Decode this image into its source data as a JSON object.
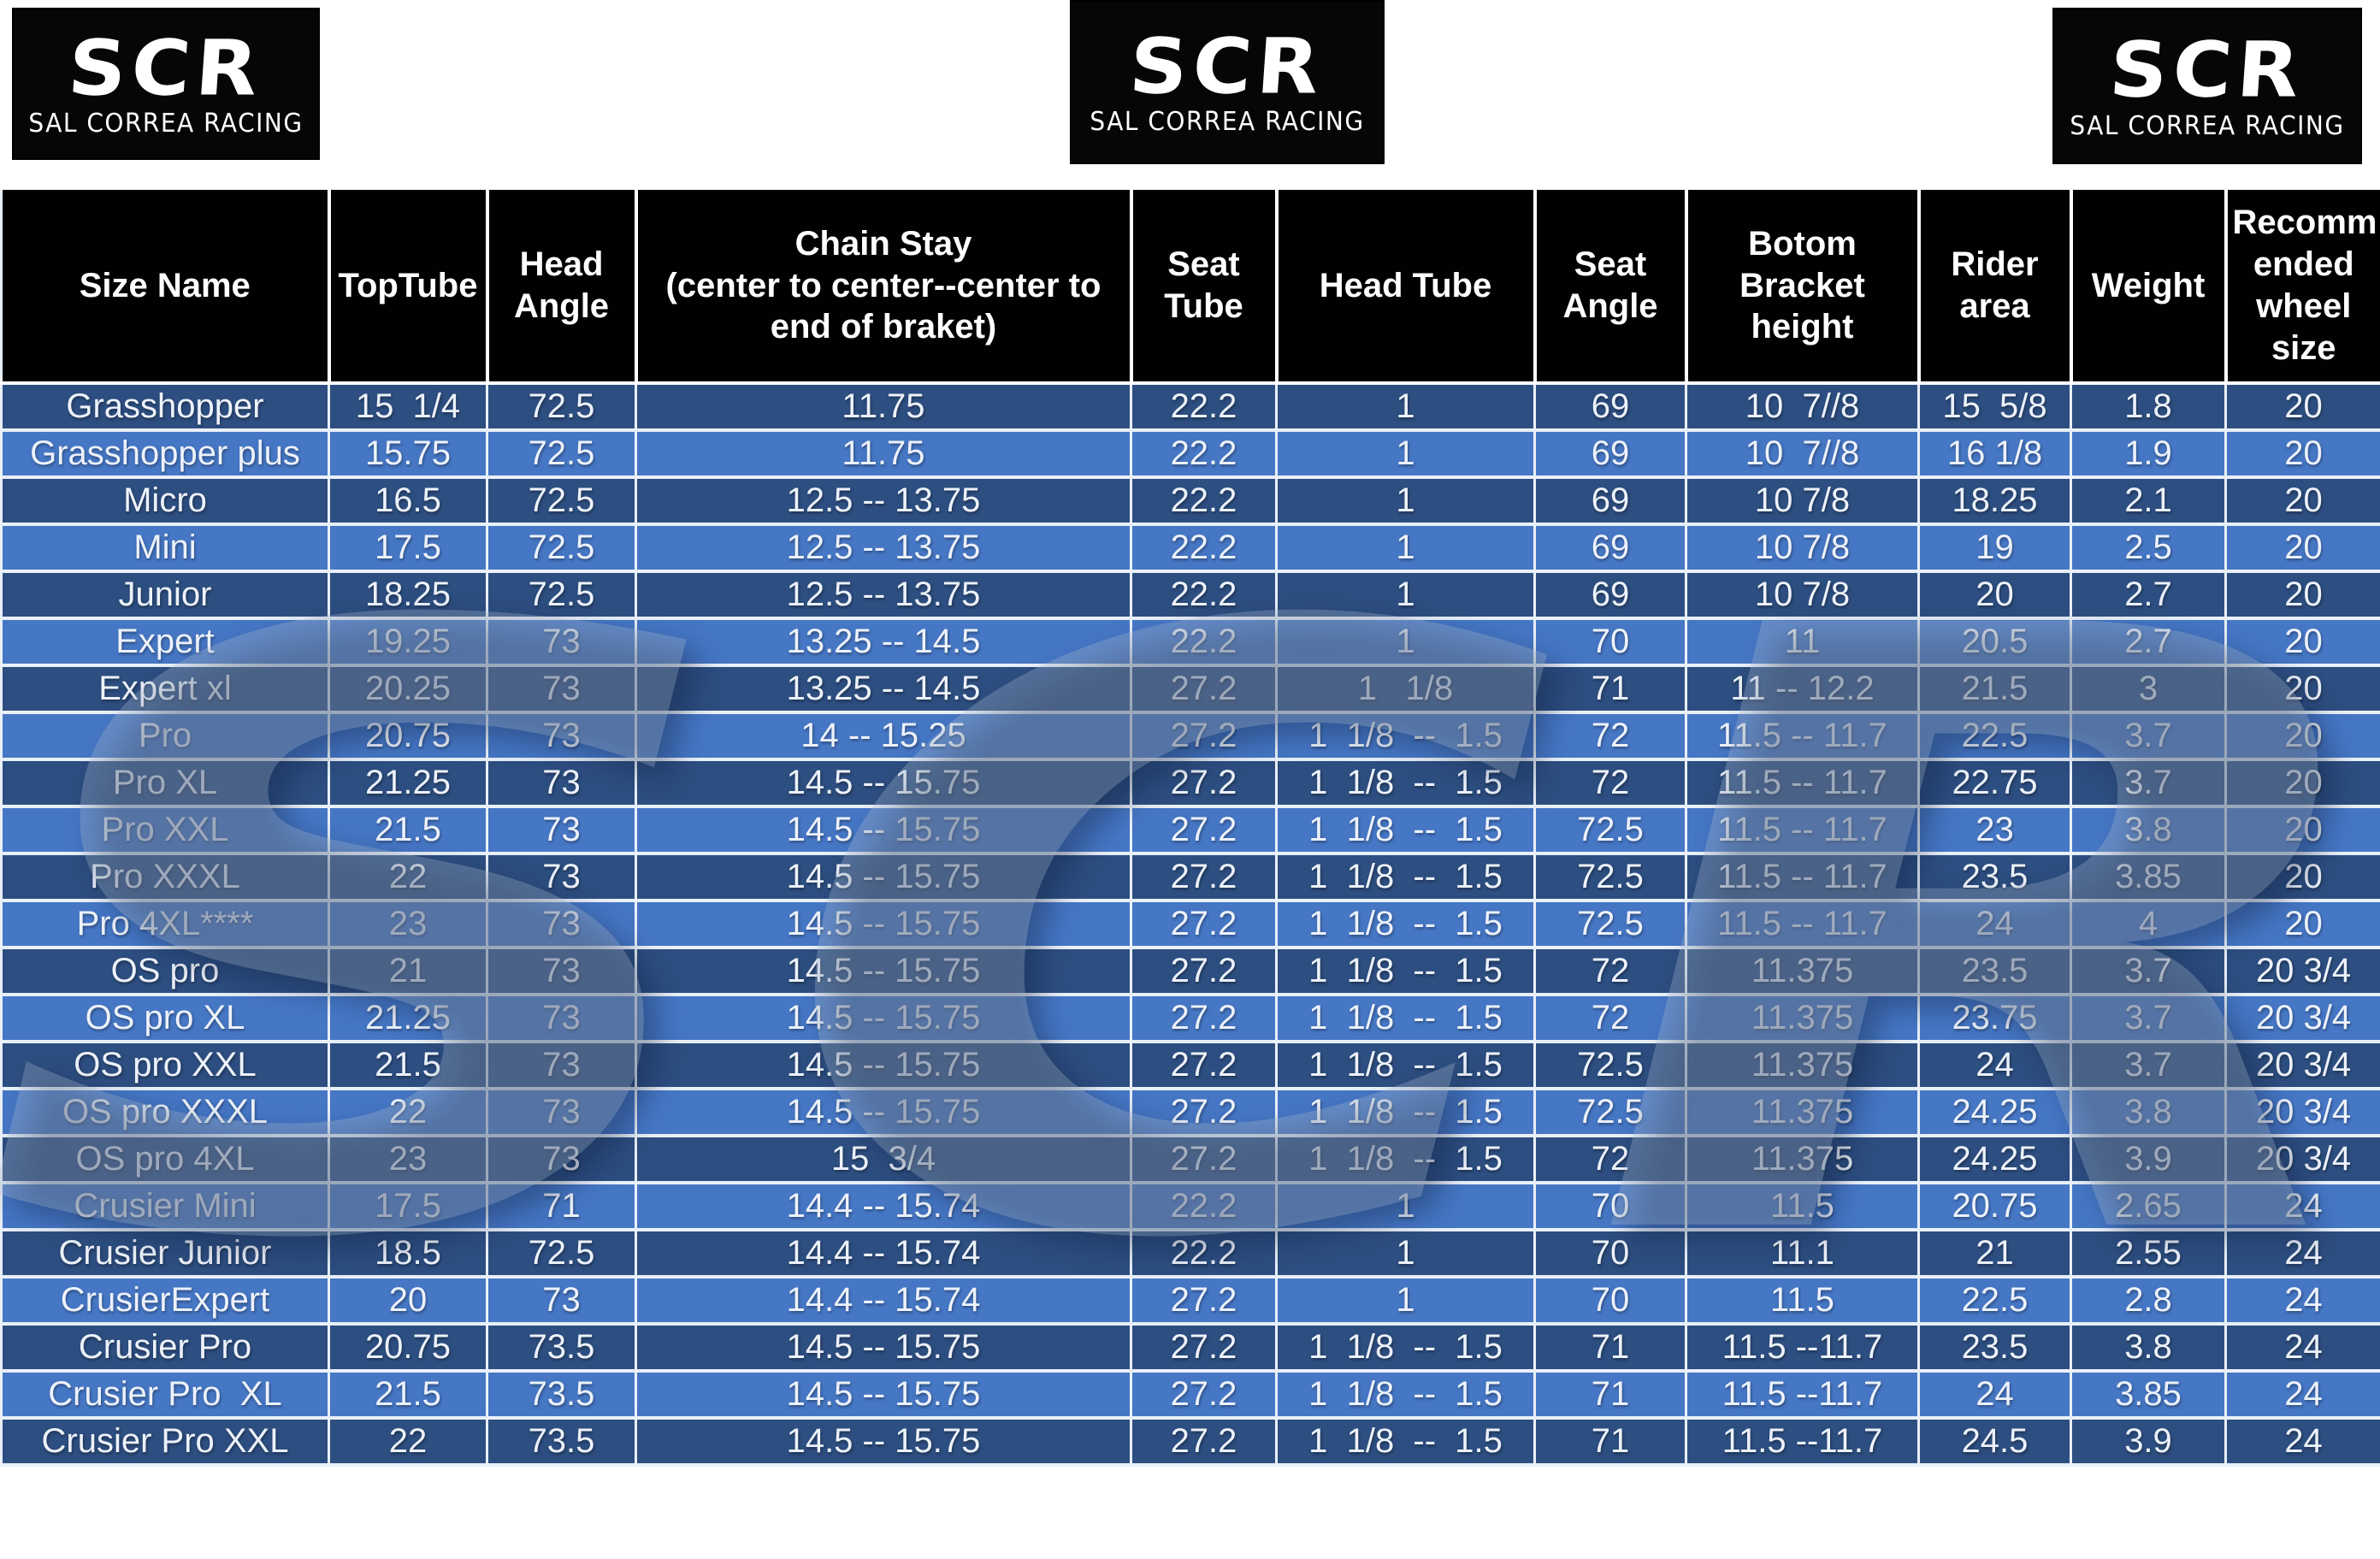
{
  "logo": {
    "initials": "SCR",
    "subtitle": "SAL CORREA RACING"
  },
  "watermark": "SCR",
  "colors": {
    "header_bg": "#010101",
    "row_dark": "#2d4e80",
    "row_light": "#4677c5",
    "grid_line": "#e9f0f8",
    "text": "#edf2fa"
  },
  "table": {
    "columns": [
      "Size Name",
      "TopTube",
      "Head\nAngle",
      "Chain Stay\n(center to center--center to\nend of braket)",
      "Seat\nTube",
      "Head Tube",
      "Seat\nAngle",
      "Botom\nBracket\nheight",
      "Rider\narea",
      "Weight",
      "Recomm\nended\nwheel\nsize"
    ],
    "rows": [
      [
        "Grasshopper",
        "15  1/4",
        "72.5",
        "11.75",
        "22.2",
        "1",
        "69",
        "10  7//8",
        "15  5/8",
        "1.8",
        "20"
      ],
      [
        "Grasshopper plus",
        "15.75",
        "72.5",
        "11.75",
        "22.2",
        "1",
        "69",
        "10  7//8",
        "16 1/8",
        "1.9",
        "20"
      ],
      [
        "Micro",
        "16.5",
        "72.5",
        "12.5 -- 13.75",
        "22.2",
        "1",
        "69",
        "10 7/8",
        "18.25",
        "2.1",
        "20"
      ],
      [
        "Mini",
        "17.5",
        "72.5",
        "12.5 -- 13.75",
        "22.2",
        "1",
        "69",
        "10 7/8",
        "19",
        "2.5",
        "20"
      ],
      [
        "Junior",
        "18.25",
        "72.5",
        "12.5 -- 13.75",
        "22.2",
        "1",
        "69",
        "10 7/8",
        "20",
        "2.7",
        "20"
      ],
      [
        "Expert",
        "19.25",
        "73",
        "13.25 -- 14.5",
        "22.2",
        "1",
        "70",
        "11",
        "20.5",
        "2.7",
        "20"
      ],
      [
        "Expert xl",
        "20.25",
        "73",
        "13.25 -- 14.5",
        "27.2",
        "1   1/8",
        "71",
        "11 -- 12.2",
        "21.5",
        "3",
        "20"
      ],
      [
        "Pro",
        "20.75",
        "73",
        "14 -- 15.25",
        "27.2",
        "1  1/8  --  1.5",
        "72",
        "11.5 -- 11.7",
        "22.5",
        "3.7",
        "20"
      ],
      [
        "Pro XL",
        "21.25",
        "73",
        "14.5 -- 15.75",
        "27.2",
        "1  1/8  --  1.5",
        "72",
        "11.5 -- 11.7",
        "22.75",
        "3.7",
        "20"
      ],
      [
        "Pro XXL",
        "21.5",
        "73",
        "14.5 -- 15.75",
        "27.2",
        "1  1/8  --  1.5",
        "72.5",
        "11.5 -- 11.7",
        "23",
        "3.8",
        "20"
      ],
      [
        "Pro XXXL",
        "22",
        "73",
        "14.5 -- 15.75",
        "27.2",
        "1  1/8  --  1.5",
        "72.5",
        "11.5 -- 11.7",
        "23.5",
        "3.85",
        "20"
      ],
      [
        "Pro 4XL****",
        "23",
        "73",
        "14.5 -- 15.75",
        "27.2",
        "1  1/8  --  1.5",
        "72.5",
        "11.5 -- 11.7",
        "24",
        "4",
        "20"
      ],
      [
        "OS pro",
        "21",
        "73",
        "14.5 -- 15.75",
        "27.2",
        "1  1/8  --  1.5",
        "72",
        "11.375",
        "23.5",
        "3.7",
        "20 3/4"
      ],
      [
        "OS pro XL",
        "21.25",
        "73",
        "14.5 -- 15.75",
        "27.2",
        "1  1/8  --  1.5",
        "72",
        "11.375",
        "23.75",
        "3.7",
        "20 3/4"
      ],
      [
        "OS pro XXL",
        "21.5",
        "73",
        "14.5 -- 15.75",
        "27.2",
        "1  1/8  --  1.5",
        "72.5",
        "11.375",
        "24",
        "3.7",
        "20 3/4"
      ],
      [
        "OS pro XXXL",
        "22",
        "73",
        "14.5 -- 15.75",
        "27.2",
        "1  1/8  --  1.5",
        "72.5",
        "11.375",
        "24.25",
        "3.8",
        "20 3/4"
      ],
      [
        "OS pro 4XL",
        "23",
        "73",
        "15  3/4",
        "27.2",
        "1  1/8  --  1.5",
        "72",
        "11.375",
        "24.25",
        "3.9",
        "20 3/4"
      ],
      [
        "Crusier Mini",
        "17.5",
        "71",
        "14.4 -- 15.74",
        "22.2",
        "1",
        "70",
        "11.5",
        "20.75",
        "2.65",
        "24"
      ],
      [
        "Crusier Junior",
        "18.5",
        "72.5",
        "14.4 -- 15.74",
        "22.2",
        "1",
        "70",
        "11.1",
        "21",
        "2.55",
        "24"
      ],
      [
        "CrusierExpert",
        "20",
        "73",
        "14.4 -- 15.74",
        "27.2",
        "1",
        "70",
        "11.5",
        "22.5",
        "2.8",
        "24"
      ],
      [
        "Crusier Pro",
        "20.75",
        "73.5",
        "14.5 -- 15.75",
        "27.2",
        "1  1/8  --  1.5",
        "71",
        "11.5 --11.7",
        "23.5",
        "3.8",
        "24"
      ],
      [
        "Crusier Pro  XL",
        "21.5",
        "73.5",
        "14.5 -- 15.75",
        "27.2",
        "1  1/8  --  1.5",
        "71",
        "11.5 --11.7",
        "24",
        "3.85",
        "24"
      ],
      [
        "Crusier Pro XXL",
        "22",
        "73.5",
        "14.5 -- 15.75",
        "27.2",
        "1  1/8  --  1.5",
        "71",
        "11.5 --11.7",
        "24.5",
        "3.9",
        "24"
      ]
    ]
  }
}
